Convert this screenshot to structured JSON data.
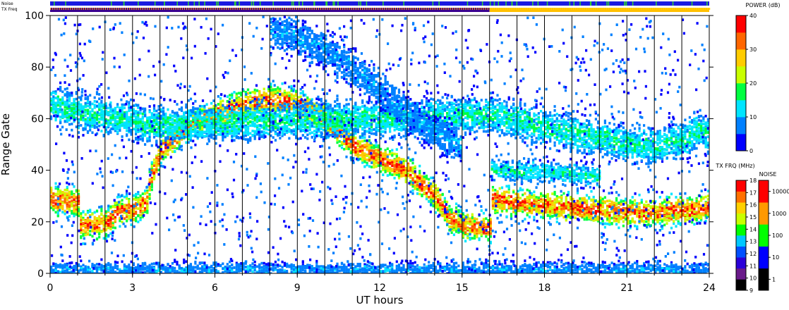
{
  "chart_data": {
    "type": "heatmap",
    "title": "",
    "xlabel": "UT hours",
    "ylabel": "Range Gate",
    "xlim": [
      0,
      24
    ],
    "ylim": [
      0,
      100
    ],
    "x_ticks": [
      "0",
      "3",
      "6",
      "9",
      "12",
      "15",
      "18",
      "21",
      "24"
    ],
    "y_ticks": [
      "0",
      "20",
      "40",
      "60",
      "80",
      "100"
    ],
    "hour_gridlines": true,
    "scan_boundaries_ut": [
      1,
      2,
      3,
      4,
      5,
      6,
      7,
      8,
      9,
      10,
      11,
      12,
      13,
      14,
      15,
      16,
      17,
      18,
      19,
      20,
      21,
      22,
      23
    ],
    "power_colorbar": {
      "label": "POWER (dB)",
      "range": [
        0,
        40
      ],
      "ticks": [
        "0",
        "10",
        "20",
        "30",
        "40"
      ],
      "colors": [
        "#0000ff",
        "#0080ff",
        "#00e5ff",
        "#00ff40",
        "#c8ff00",
        "#ffcc00",
        "#ff6600",
        "#ff0000"
      ]
    },
    "tx_freq_colorbar": {
      "label": "TX FRQ (MHz)",
      "range": [
        9,
        18
      ],
      "ticks": [
        "9",
        "10",
        "11",
        "12",
        "13",
        "14",
        "15",
        "16",
        "17",
        "18"
      ],
      "colors": [
        "#000000",
        "#6a1a8a",
        "#2a00d8",
        "#0050ff",
        "#00c8ff",
        "#00ff00",
        "#c8ff00",
        "#ffd000",
        "#ff7000",
        "#ff0000"
      ]
    },
    "noise_colorbar": {
      "label": "NOISE",
      "ticks": [
        "1",
        "10",
        "100",
        "1000",
        "10000"
      ],
      "colors": [
        "#000000",
        "#0000ff",
        "#00ff00",
        "#ff9900",
        "#ff0000"
      ]
    },
    "status_bars": {
      "noise_label": "Noise",
      "txfreq_label": "TX Freq",
      "noise_color": "#1a1ae0",
      "noise_marks_color": "#30d030",
      "txfreq_segments": [
        {
          "start": 0,
          "end": 16,
          "color": "#3a0090",
          "stripe": "#ff9900"
        },
        {
          "start": 16,
          "end": 24,
          "color": "#ffc000",
          "stripe": "#ffd400"
        }
      ]
    },
    "echo_bands": [
      {
        "name": "",
        "points": [
          [
            0,
            29
          ],
          [
            1,
            28
          ],
          [
            1.05,
            19
          ],
          [
            2,
            20
          ],
          [
            2.4,
            24
          ],
          [
            3,
            25
          ],
          [
            3.5,
            28
          ],
          [
            3.6,
            36
          ],
          [
            4,
            48
          ],
          [
            5,
            58
          ],
          [
            6,
            62
          ],
          [
            7,
            66
          ],
          [
            8,
            68
          ],
          [
            9,
            66
          ],
          [
            10,
            60
          ],
          [
            11,
            50
          ],
          [
            12,
            45
          ],
          [
            13,
            40
          ],
          [
            14,
            30
          ],
          [
            14.5,
            22
          ],
          [
            15,
            19
          ],
          [
            16,
            18
          ],
          [
            16.05,
            29
          ],
          [
            17,
            28
          ],
          [
            18,
            27
          ],
          [
            19,
            26
          ],
          [
            20,
            25
          ],
          [
            21,
            24
          ],
          [
            22,
            24
          ],
          [
            23,
            25
          ],
          [
            24,
            26
          ]
        ],
        "width": 4,
        "peak_db": 35
      },
      {
        "name": "",
        "points": [
          [
            0,
            66
          ],
          [
            1,
            63
          ],
          [
            2,
            61
          ],
          [
            3,
            60
          ],
          [
            3.5,
            58
          ],
          [
            16.05,
            62
          ],
          [
            17,
            60
          ],
          [
            18,
            57
          ],
          [
            19,
            55
          ],
          [
            20,
            53
          ],
          [
            21,
            51
          ],
          [
            22,
            50
          ],
          [
            23,
            52
          ],
          [
            23.5,
            56
          ],
          [
            24,
            54
          ]
        ],
        "width": 5,
        "peak_db": 15
      },
      {
        "name": "",
        "points": [
          [
            16.05,
            41
          ],
          [
            17,
            40
          ],
          [
            18,
            40
          ],
          [
            19,
            39
          ],
          [
            20,
            38
          ]
        ],
        "width": 3,
        "peak_db": 14
      },
      {
        "name": "",
        "points": [
          [
            8,
            95
          ],
          [
            9,
            92
          ],
          [
            10,
            87
          ],
          [
            11,
            80
          ],
          [
            12,
            72
          ],
          [
            13,
            62
          ],
          [
            14,
            55
          ],
          [
            15,
            50
          ]
        ],
        "width": 5,
        "peak_db": 8
      },
      {
        "name": "",
        "points": [
          [
            0,
            2
          ],
          [
            24,
            2
          ]
        ],
        "width": 2,
        "peak_db": 8
      }
    ]
  }
}
